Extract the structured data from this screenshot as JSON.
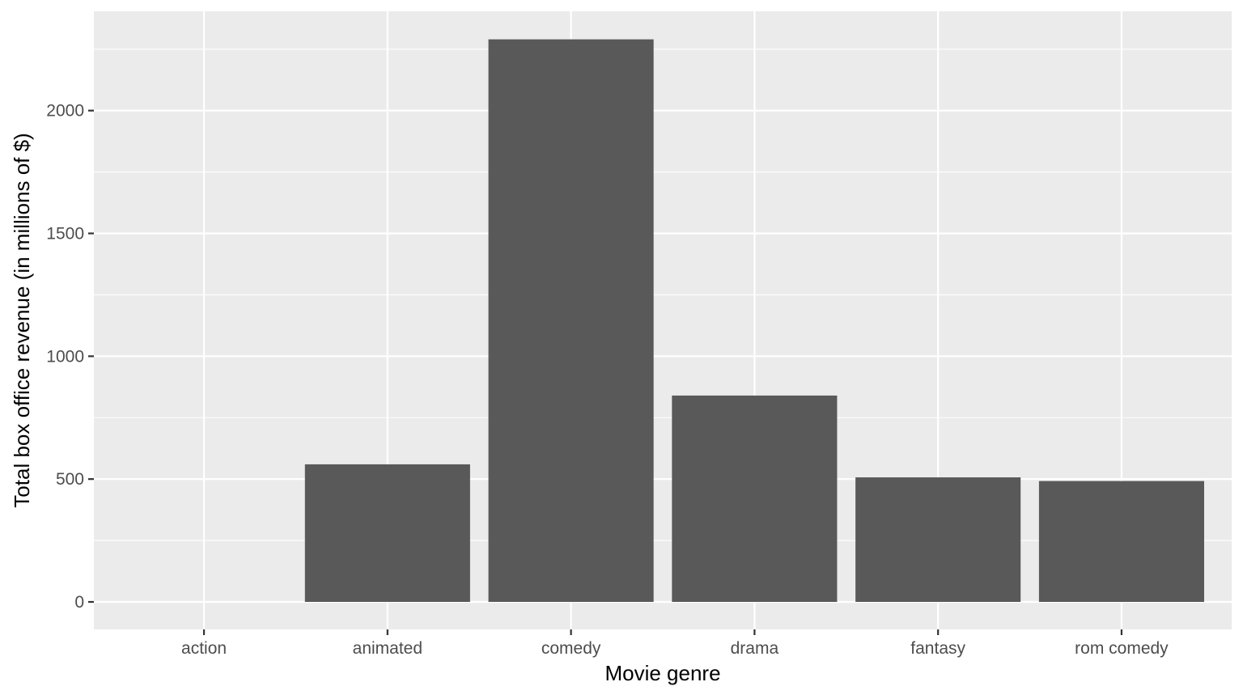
{
  "chart_data": {
    "type": "bar",
    "title": "",
    "xlabel": "Movie genre",
    "ylabel": "Total box office revenue (in millions of $)",
    "categories": [
      "action",
      "animated",
      "comedy",
      "drama",
      "fantasy",
      "rom comedy"
    ],
    "values": [
      0,
      560,
      2290,
      840,
      507,
      492
    ],
    "ylim": [
      -112,
      2404
    ],
    "yticks": [
      0,
      500,
      1000,
      1500,
      2000
    ],
    "grid": true,
    "legend": "none",
    "colors": {
      "panel": "#ebebeb",
      "grid": "#ffffff",
      "bar": "#595959",
      "tick": "#333333",
      "tick_label": "#4d4d4d"
    }
  }
}
